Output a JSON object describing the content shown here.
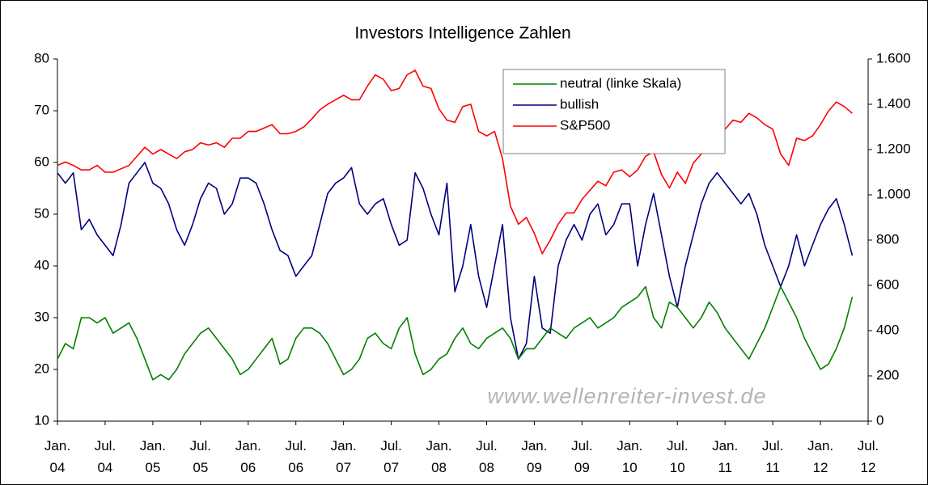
{
  "chart_data": {
    "type": "line",
    "title": "Investors Intelligence Zahlen",
    "watermark": "www.wellenreiter-invest.de",
    "x": [
      "2004-01",
      "2004-02",
      "2004-03",
      "2004-04",
      "2004-05",
      "2004-06",
      "2004-07",
      "2004-08",
      "2004-09",
      "2004-10",
      "2004-11",
      "2004-12",
      "2005-01",
      "2005-02",
      "2005-03",
      "2005-04",
      "2005-05",
      "2005-06",
      "2005-07",
      "2005-08",
      "2005-09",
      "2005-10",
      "2005-11",
      "2005-12",
      "2006-01",
      "2006-02",
      "2006-03",
      "2006-04",
      "2006-05",
      "2006-06",
      "2006-07",
      "2006-08",
      "2006-09",
      "2006-10",
      "2006-11",
      "2006-12",
      "2007-01",
      "2007-02",
      "2007-03",
      "2007-04",
      "2007-05",
      "2007-06",
      "2007-07",
      "2007-08",
      "2007-09",
      "2007-10",
      "2007-11",
      "2007-12",
      "2008-01",
      "2008-02",
      "2008-03",
      "2008-04",
      "2008-05",
      "2008-06",
      "2008-07",
      "2008-08",
      "2008-09",
      "2008-10",
      "2008-11",
      "2008-12",
      "2009-01",
      "2009-02",
      "2009-03",
      "2009-04",
      "2009-05",
      "2009-06",
      "2009-07",
      "2009-08",
      "2009-09",
      "2009-10",
      "2009-11",
      "2009-12",
      "2010-01",
      "2010-02",
      "2010-03",
      "2010-04",
      "2010-05",
      "2010-06",
      "2010-07",
      "2010-08",
      "2010-09",
      "2010-10",
      "2010-11",
      "2010-12",
      "2011-01",
      "2011-02",
      "2011-03",
      "2011-04",
      "2011-05",
      "2011-06",
      "2011-07",
      "2011-08",
      "2011-09",
      "2011-10",
      "2011-11",
      "2011-12",
      "2012-01",
      "2012-02",
      "2012-03",
      "2012-04",
      "2012-05"
    ],
    "series": [
      {
        "name": "neutral (linke Skala)",
        "color": "#008000",
        "values": [
          22,
          25,
          24,
          30,
          30,
          29,
          30,
          27,
          28,
          29,
          26,
          22,
          18,
          19,
          18,
          20,
          23,
          25,
          27,
          28,
          26,
          24,
          22,
          19,
          20,
          22,
          24,
          26,
          21,
          22,
          26,
          28,
          28,
          27,
          25,
          22,
          19,
          20,
          22,
          26,
          27,
          25,
          24,
          28,
          30,
          23,
          19,
          20,
          22,
          23,
          26,
          28,
          25,
          24,
          26,
          27,
          28,
          26,
          22,
          24,
          24,
          26,
          28,
          27,
          26,
          28,
          29,
          30,
          28,
          29,
          30,
          32,
          33,
          34,
          36,
          30,
          28,
          33,
          32,
          30,
          28,
          30,
          33,
          31,
          28,
          26,
          24,
          22,
          25,
          28,
          32,
          36,
          33,
          30,
          26,
          23,
          20,
          21,
          24,
          28,
          34
        ]
      },
      {
        "name": "bullish",
        "color": "#000080",
        "values": [
          58,
          56,
          58,
          47,
          49,
          46,
          44,
          42,
          48,
          56,
          58,
          60,
          56,
          55,
          52,
          47,
          44,
          48,
          53,
          56,
          55,
          50,
          52,
          57,
          57,
          56,
          52,
          47,
          43,
          42,
          38,
          40,
          42,
          48,
          54,
          56,
          57,
          59,
          52,
          50,
          52,
          53,
          48,
          44,
          45,
          58,
          55,
          50,
          46,
          56,
          35,
          40,
          48,
          38,
          32,
          40,
          48,
          30,
          22,
          25,
          38,
          28,
          27,
          40,
          45,
          48,
          45,
          50,
          52,
          46,
          48,
          52,
          52,
          40,
          48,
          54,
          46,
          38,
          32,
          40,
          46,
          52,
          56,
          58,
          56,
          54,
          52,
          54,
          50,
          44,
          40,
          36,
          40,
          46,
          40,
          44,
          48,
          51,
          53,
          48,
          42
        ]
      },
      {
        "name": "S&P500",
        "color": "#ff0000",
        "axis": "y2",
        "values": [
          1130,
          1145,
          1130,
          1110,
          1110,
          1130,
          1100,
          1100,
          1115,
          1130,
          1170,
          1210,
          1180,
          1200,
          1180,
          1160,
          1190,
          1200,
          1230,
          1220,
          1230,
          1210,
          1250,
          1250,
          1280,
          1280,
          1295,
          1310,
          1270,
          1270,
          1280,
          1300,
          1335,
          1375,
          1400,
          1420,
          1440,
          1420,
          1420,
          1480,
          1530,
          1510,
          1460,
          1470,
          1530,
          1550,
          1480,
          1470,
          1380,
          1330,
          1320,
          1390,
          1400,
          1280,
          1260,
          1280,
          1160,
          950,
          870,
          900,
          830,
          740,
          800,
          870,
          920,
          920,
          980,
          1020,
          1060,
          1040,
          1100,
          1110,
          1080,
          1110,
          1170,
          1190,
          1090,
          1030,
          1100,
          1050,
          1140,
          1180,
          1200,
          1260,
          1290,
          1330,
          1320,
          1360,
          1340,
          1310,
          1290,
          1180,
          1130,
          1250,
          1240,
          1260,
          1310,
          1370,
          1410,
          1390,
          1360
        ]
      }
    ],
    "xlim": [
      "2004-01",
      "2012-07"
    ],
    "xticks": [
      {
        "value": "2004-01",
        "label": "Jan. 04"
      },
      {
        "value": "2004-07",
        "label": "Jul. 04"
      },
      {
        "value": "2005-01",
        "label": "Jan. 05"
      },
      {
        "value": "2005-07",
        "label": "Jul. 05"
      },
      {
        "value": "2006-01",
        "label": "Jan. 06"
      },
      {
        "value": "2006-07",
        "label": "Jul. 06"
      },
      {
        "value": "2007-01",
        "label": "Jan. 07"
      },
      {
        "value": "2007-07",
        "label": "Jul. 07"
      },
      {
        "value": "2008-01",
        "label": "Jan. 08"
      },
      {
        "value": "2008-07",
        "label": "Jul. 08"
      },
      {
        "value": "2009-01",
        "label": "Jan. 09"
      },
      {
        "value": "2009-07",
        "label": "Jul. 09"
      },
      {
        "value": "2010-01",
        "label": "Jan. 10"
      },
      {
        "value": "2010-07",
        "label": "Jul. 10"
      },
      {
        "value": "2011-01",
        "label": "Jan. 11"
      },
      {
        "value": "2011-07",
        "label": "Jul. 11"
      },
      {
        "value": "2012-01",
        "label": "Jan. 12"
      },
      {
        "value": "2012-07",
        "label": "Jul. 12"
      }
    ],
    "ylim": [
      10,
      80
    ],
    "yticks": [
      10,
      20,
      30,
      40,
      50,
      60,
      70,
      80
    ],
    "y2lim": [
      0,
      1600
    ],
    "y2ticks": [
      0,
      200,
      400,
      600,
      {
        "value": 800,
        "label": "800"
      },
      {
        "value": 1000,
        "label": "1.000"
      },
      {
        "value": 1200,
        "label": "1.200"
      },
      {
        "value": 1400,
        "label": "1.400"
      },
      {
        "value": 1600,
        "label": "1.600"
      }
    ],
    "grid": false,
    "legend": "top-right"
  }
}
